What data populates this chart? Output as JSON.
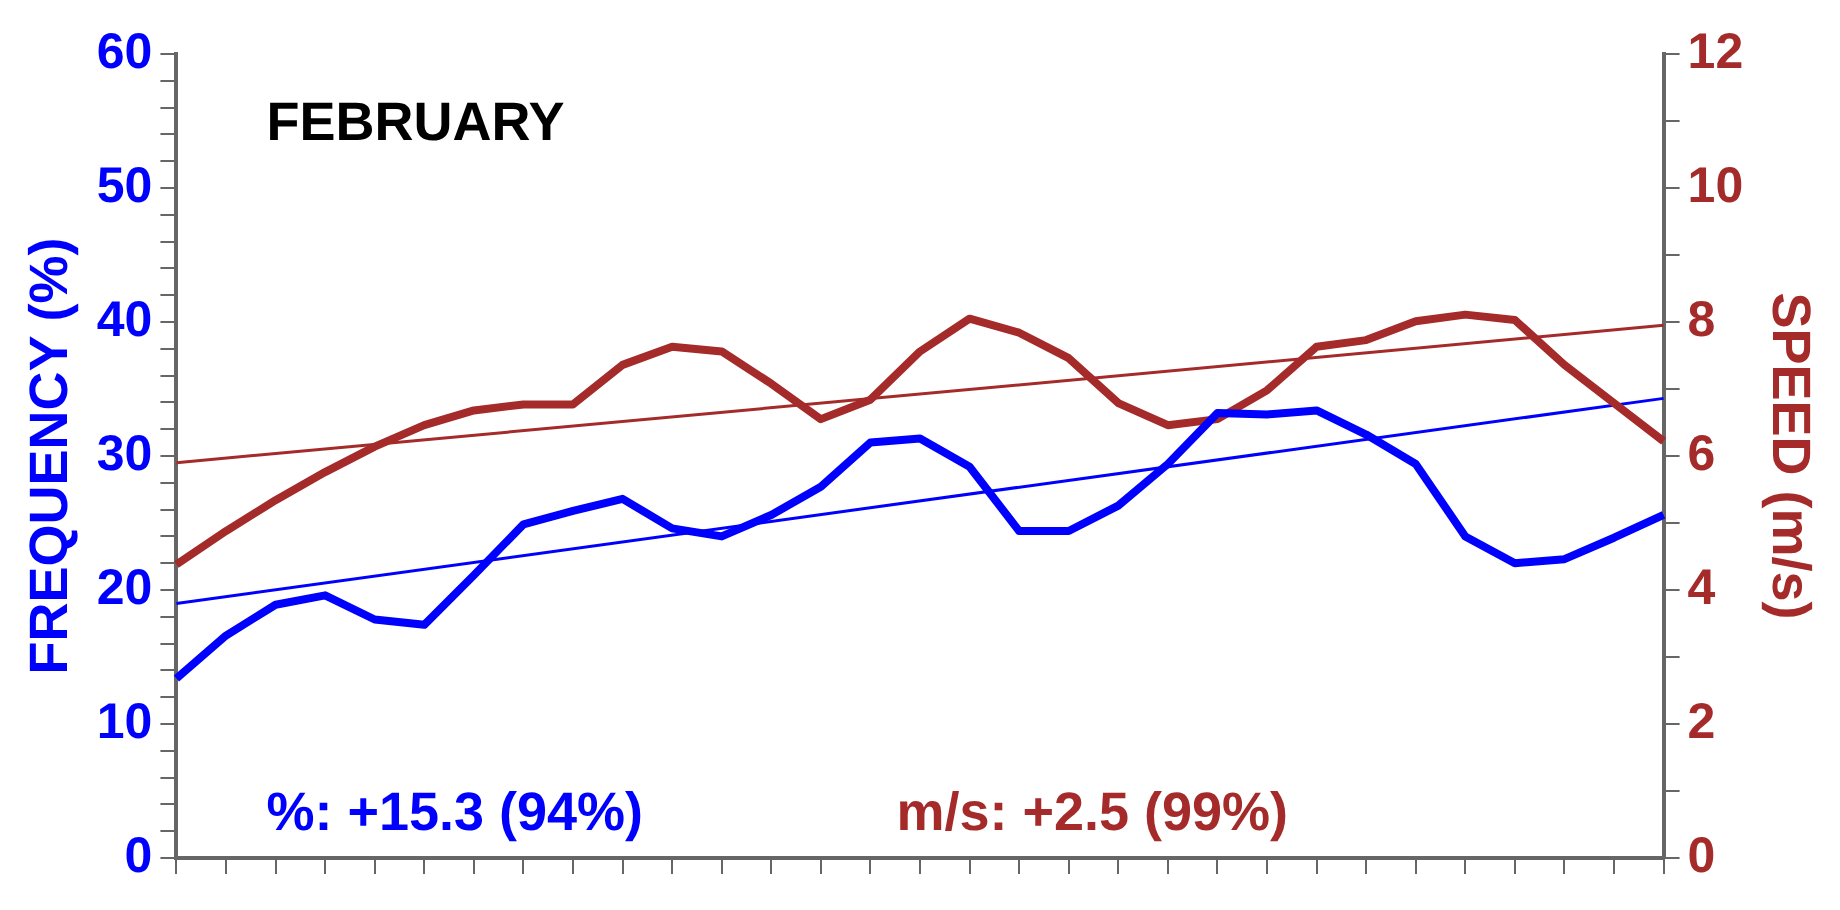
{
  "chart_data": {
    "type": "line",
    "title": "FEBRUARY",
    "ylabel": "FREQUENCY (%)",
    "y2label": "SPEED (m/s)",
    "categories": [
      null,
      null,
      null,
      null,
      null,
      null,
      null,
      null,
      null,
      null,
      null,
      null,
      null,
      null,
      null,
      null,
      null,
      null,
      null,
      null,
      null,
      null,
      null,
      null,
      null,
      null,
      null,
      null,
      null,
      null,
      null
    ],
    "series": [
      {
        "color": "#0000ff",
        "values": [
          13.4,
          16.6,
          18.9,
          19.6,
          17.8,
          17.4,
          21.1,
          24.9,
          25.9,
          26.8,
          24.6,
          24.0,
          25.6,
          27.7,
          31.0,
          31.3,
          29.2,
          24.4,
          24.4,
          26.3,
          29.4,
          33.2,
          33.1,
          33.4,
          31.6,
          29.4,
          24.0,
          22.0,
          22.3,
          23.9,
          25.6
        ]
      },
      {
        "color": "#a52a2a",
        "axis": "y2",
        "values": [
          4.38,
          4.88,
          5.34,
          5.76,
          6.14,
          6.46,
          6.68,
          6.77,
          6.77,
          7.36,
          7.63,
          7.56,
          7.08,
          6.55,
          6.84,
          7.56,
          8.05,
          7.84,
          7.46,
          6.79,
          6.46,
          6.55,
          6.98,
          7.63,
          7.73,
          8.01,
          8.11,
          8.03,
          7.36,
          6.79,
          6.22
        ]
      },
      {
        "color": "#0000ff",
        "values": [
          19.0,
          null,
          null,
          null,
          null,
          null,
          null,
          null,
          null,
          null,
          null,
          null,
          null,
          null,
          null,
          null,
          null,
          null,
          null,
          null,
          null,
          null,
          null,
          null,
          null,
          null,
          null,
          null,
          null,
          null,
          34.3
        ]
      },
      {
        "color": "#a52a2a",
        "axis": "y2",
        "values": [
          5.9,
          null,
          null,
          null,
          null,
          null,
          null,
          null,
          null,
          null,
          null,
          null,
          null,
          null,
          null,
          null,
          null,
          null,
          null,
          null,
          null,
          null,
          null,
          null,
          null,
          null,
          null,
          null,
          null,
          null,
          7.95
        ]
      }
    ],
    "ylim": [
      0,
      60
    ],
    "yticks": [
      0,
      {
        "value": 2,
        "label": null
      },
      {
        "value": 4,
        "label": null
      },
      {
        "value": 6,
        "label": null
      },
      {
        "value": 8,
        "label": null
      },
      10,
      {
        "value": 12,
        "label": null
      },
      {
        "value": 14,
        "label": null
      },
      {
        "value": 16,
        "label": null
      },
      {
        "value": 18,
        "label": null
      },
      20,
      {
        "value": 22,
        "label": null
      },
      {
        "value": 24,
        "label": null
      },
      {
        "value": 26,
        "label": null
      },
      {
        "value": 28,
        "label": null
      },
      30,
      {
        "value": 32,
        "label": null
      },
      {
        "value": 34,
        "label": null
      },
      {
        "value": 36,
        "label": null
      },
      {
        "value": 38,
        "label": null
      },
      40,
      {
        "value": 42,
        "label": null
      },
      {
        "value": 44,
        "label": null
      },
      {
        "value": 46,
        "label": null
      },
      {
        "value": 48,
        "label": null
      },
      50,
      {
        "value": 52,
        "label": null
      },
      {
        "value": 54,
        "label": null
      },
      {
        "value": 56,
        "label": null
      },
      {
        "value": 58,
        "label": null
      },
      60
    ],
    "y2lim": [
      0,
      12
    ],
    "y2ticks": [
      0,
      {
        "value": 1,
        "label": null
      },
      2,
      {
        "value": 3,
        "label": null
      },
      4,
      {
        "value": 5,
        "label": null
      },
      6,
      {
        "value": 7,
        "label": null
      },
      8,
      {
        "value": 9,
        "label": null
      },
      10,
      {
        "value": 11,
        "label": null
      },
      12
    ],
    "annotations": [
      "%: +15.3 (94%)",
      "m/s: +2.5 (99%)"
    ],
    "tick_labels": "y",
    "grid": false,
    "legend": false,
    "marker": "none",
    "line_style": "solid"
  }
}
